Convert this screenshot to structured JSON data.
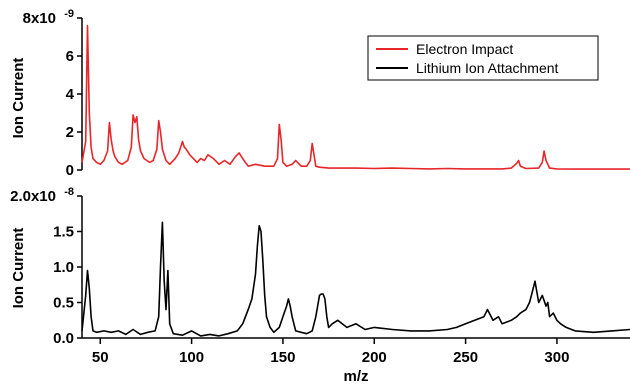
{
  "chart_data": [
    {
      "type": "line",
      "panel": "top",
      "ylabel": "Ion Current",
      "ylim": [
        0,
        8e-09
      ],
      "yticks": [
        "0",
        "2",
        "4",
        "6",
        "8x10"
      ],
      "ytick_exponent": "-9",
      "xlim": [
        40,
        340
      ],
      "legend_position": "top-right",
      "series": [
        {
          "name": "Electron Impact",
          "color": "#e8262a",
          "x": [
            40,
            42,
            43,
            44,
            45,
            46,
            48,
            50,
            52,
            54,
            55,
            56,
            57,
            58,
            60,
            62,
            65,
            67,
            68,
            69,
            70,
            71,
            72,
            74,
            77,
            79,
            81,
            82,
            83,
            84,
            86,
            88,
            91,
            93,
            95,
            96,
            97,
            99,
            101,
            103,
            105,
            107,
            109,
            112,
            115,
            118,
            121,
            124,
            126,
            128,
            131,
            135,
            140,
            145,
            147,
            148,
            149,
            150,
            152,
            155,
            157,
            160,
            163,
            165,
            166,
            167,
            168,
            170,
            175,
            180,
            190,
            200,
            210,
            220,
            230,
            240,
            250,
            260,
            270,
            275,
            278,
            279,
            280,
            283,
            290,
            292,
            293,
            294,
            296,
            300,
            310,
            320,
            330,
            340
          ],
          "y": [
            4e-10,
            1.5e-09,
            7.6e-09,
            3e-09,
            1.2e-09,
            6e-10,
            4e-10,
            3e-10,
            5e-10,
            1e-09,
            2.5e-09,
            1.6e-09,
            1e-09,
            7e-10,
            4e-10,
            3e-10,
            5e-10,
            1.2e-09,
            2.9e-09,
            2.5e-09,
            2.8e-09,
            1.6e-09,
            1e-09,
            6e-10,
            4e-10,
            5e-10,
            1.1e-09,
            2.6e-09,
            2e-09,
            1.1e-09,
            5e-10,
            3e-10,
            6e-10,
            9e-10,
            1.5e-09,
            1.2e-09,
            1.1e-09,
            8e-10,
            6e-10,
            4e-10,
            6e-10,
            5e-10,
            8e-10,
            6e-10,
            3e-10,
            5e-10,
            3e-10,
            7e-10,
            9e-10,
            6e-10,
            2e-10,
            3e-10,
            2e-10,
            2e-10,
            6e-10,
            2.4e-09,
            1.6e-09,
            4e-10,
            2e-10,
            3e-10,
            5e-10,
            2e-10,
            2e-10,
            5e-10,
            1.4e-09,
            8e-10,
            2e-10,
            1.5e-10,
            1e-10,
            1e-10,
            1e-10,
            8e-11,
            1e-10,
            8e-11,
            6e-11,
            8e-11,
            6e-11,
            6e-11,
            6e-11,
            1e-10,
            3.5e-10,
            5e-10,
            2e-10,
            8e-11,
            1e-10,
            4e-10,
            1e-09,
            5e-10,
            1e-10,
            6e-11,
            5e-11,
            5e-11,
            5e-11,
            5e-11
          ]
        },
        {
          "name": "Lithium Ion Attachment",
          "color": "#000000"
        }
      ]
    },
    {
      "type": "line",
      "panel": "bottom",
      "ylabel": "Ion Current",
      "xlabel": "m/z",
      "ylim": [
        0,
        2e-08
      ],
      "yticks": [
        "0.0",
        "0.5",
        "1.0",
        "1.5",
        "2.0x10"
      ],
      "ytick_exponent": "-8",
      "xlim": [
        40,
        340
      ],
      "xticks": [
        "50",
        "100",
        "150",
        "200",
        "250",
        "300"
      ],
      "series": [
        {
          "name": "Lithium Ion Attachment",
          "color": "#000000",
          "x": [
            40,
            42,
            43,
            44,
            45,
            46,
            48,
            52,
            56,
            60,
            64,
            68,
            72,
            76,
            80,
            82,
            83,
            84,
            85,
            86,
            87,
            88,
            90,
            95,
            100,
            105,
            110,
            115,
            120,
            125,
            128,
            131,
            133,
            135,
            136,
            137,
            138,
            139,
            140,
            141,
            143,
            145,
            148,
            150,
            152,
            153,
            154,
            155,
            157,
            160,
            163,
            166,
            168,
            170,
            171,
            172,
            173,
            174,
            175,
            177,
            180,
            185,
            190,
            195,
            200,
            210,
            220,
            230,
            240,
            245,
            250,
            255,
            260,
            262,
            265,
            268,
            270,
            275,
            278,
            280,
            283,
            285,
            286,
            287,
            288,
            290,
            292,
            294,
            295,
            296,
            298,
            300,
            302,
            305,
            310,
            320,
            330,
            340
          ],
          "y": [
            1e-09,
            6e-09,
            9.5e-09,
            7e-09,
            3e-09,
            1e-09,
            8e-10,
            1e-09,
            8e-10,
            1e-09,
            5e-10,
            1.2e-09,
            5e-10,
            8e-10,
            1e-09,
            3e-09,
            1e-08,
            1.63e-08,
            8e-09,
            4e-09,
            9.5e-09,
            2e-09,
            6e-10,
            4e-10,
            1e-09,
            3e-10,
            5e-10,
            3e-10,
            6e-10,
            1e-09,
            2e-09,
            4e-09,
            5.5e-09,
            9e-09,
            1.3e-08,
            1.58e-08,
            1.5e-08,
            1.1e-08,
            6e-09,
            3e-09,
            1.5e-09,
            8e-10,
            1.5e-09,
            3e-09,
            4.5e-09,
            5.5e-09,
            4.5e-09,
            3e-09,
            1e-09,
            8e-10,
            6e-10,
            1e-09,
            3e-09,
            6e-09,
            6.2e-09,
            6.2e-09,
            5.5e-09,
            3e-09,
            1.5e-09,
            2e-09,
            2.5e-09,
            1.5e-09,
            2e-09,
            1.2e-09,
            1.5e-09,
            1.2e-09,
            1e-09,
            1e-09,
            1.2e-09,
            1.5e-09,
            2e-09,
            2.5e-09,
            3e-09,
            4e-09,
            2.5e-09,
            3e-09,
            2e-09,
            2.5e-09,
            3e-09,
            3.5e-09,
            4e-09,
            5e-09,
            6e-09,
            7e-09,
            8e-09,
            5e-09,
            6e-09,
            4.5e-09,
            5e-09,
            3e-09,
            3.5e-09,
            2.5e-09,
            2e-09,
            1.5e-09,
            1e-09,
            8e-10,
            1e-09,
            1.2e-09
          ]
        }
      ]
    }
  ]
}
